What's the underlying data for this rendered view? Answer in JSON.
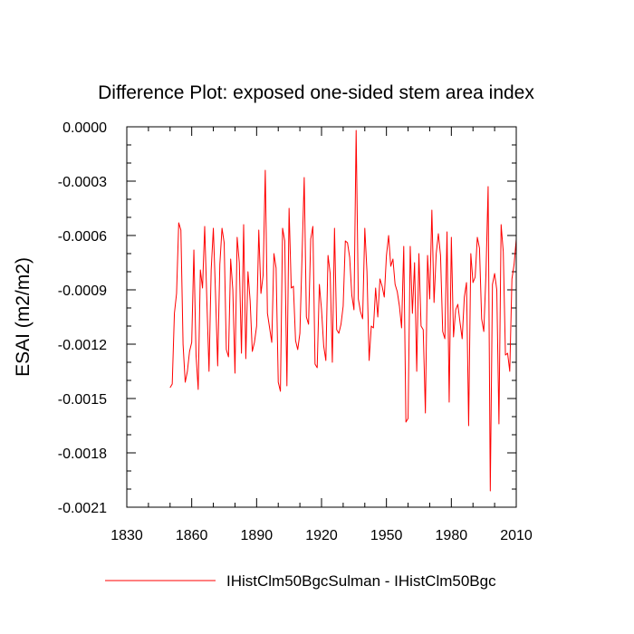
{
  "chart_data": {
    "type": "line",
    "title": "Difference Plot: exposed one-sided stem area index",
    "ylabel": "ESAI  (m2/m2)",
    "xlabel": "",
    "xlim": [
      1830,
      2010
    ],
    "ylim": [
      -0.0021,
      0.0
    ],
    "x_ticks": [
      1830,
      1860,
      1890,
      1920,
      1950,
      1980,
      2010
    ],
    "x_tick_labels": [
      "1830",
      "1860",
      "1890",
      "1920",
      "1950",
      "1980",
      "2010"
    ],
    "y_ticks": [
      0.0,
      -0.0003,
      -0.0006,
      -0.0009,
      -0.0012,
      -0.0015,
      -0.0018,
      -0.0021
    ],
    "y_tick_labels": [
      "0.0000",
      "-0.0003",
      "-0.0006",
      "-0.0009",
      "-0.0012",
      "-0.0015",
      "-0.0018",
      "-0.0021"
    ],
    "grid": false,
    "legend_position": "bottom",
    "series": [
      {
        "name": "IHistClm50BgcSulman - IHistClm50Bgc",
        "color": "#ff0000",
        "x": [
          1850,
          1851,
          1852,
          1853,
          1854,
          1855,
          1856,
          1857,
          1858,
          1859,
          1860,
          1861,
          1862,
          1863,
          1864,
          1865,
          1866,
          1867,
          1868,
          1869,
          1870,
          1871,
          1872,
          1873,
          1874,
          1875,
          1876,
          1877,
          1878,
          1879,
          1880,
          1881,
          1882,
          1883,
          1884,
          1885,
          1886,
          1887,
          1888,
          1889,
          1890,
          1891,
          1892,
          1893,
          1894,
          1895,
          1896,
          1897,
          1898,
          1899,
          1900,
          1901,
          1902,
          1903,
          1904,
          1905,
          1906,
          1907,
          1908,
          1909,
          1910,
          1911,
          1912,
          1913,
          1914,
          1915,
          1916,
          1917,
          1918,
          1919,
          1920,
          1921,
          1922,
          1923,
          1924,
          1925,
          1926,
          1927,
          1928,
          1929,
          1930,
          1931,
          1932,
          1933,
          1934,
          1935,
          1936,
          1937,
          1938,
          1939,
          1940,
          1941,
          1942,
          1943,
          1944,
          1945,
          1946,
          1947,
          1948,
          1949,
          1950,
          1951,
          1952,
          1953,
          1954,
          1955,
          1956,
          1957,
          1958,
          1959,
          1960,
          1961,
          1962,
          1963,
          1964,
          1965,
          1966,
          1967,
          1968,
          1969,
          1970,
          1971,
          1972,
          1973,
          1974,
          1975,
          1976,
          1977,
          1978,
          1979,
          1980,
          1981,
          1982,
          1983,
          1984,
          1985,
          1986,
          1987,
          1988,
          1989,
          1990,
          1991,
          1992,
          1993,
          1994,
          1995,
          1996,
          1997,
          1998,
          1999,
          2000,
          2001,
          2002,
          2003,
          2004,
          2005,
          2006,
          2007,
          2008,
          2009,
          2010
        ],
        "values": [
          -0.00144,
          -0.00142,
          -0.00103,
          -0.00092,
          -0.00053,
          -0.00057,
          -0.0012,
          -0.00141,
          -0.00135,
          -0.00124,
          -0.00119,
          -0.00068,
          -0.00126,
          -0.00145,
          -0.00079,
          -0.00089,
          -0.00055,
          -0.00096,
          -0.00135,
          -0.00079,
          -0.00056,
          -0.00092,
          -0.00132,
          -0.00076,
          -0.00056,
          -0.00064,
          -0.00123,
          -0.00127,
          -0.00073,
          -0.0009,
          -0.00136,
          -0.00061,
          -0.00075,
          -0.00125,
          -0.00054,
          -0.00128,
          -0.0008,
          -0.00096,
          -0.00124,
          -0.00119,
          -0.0011,
          -0.00057,
          -0.00092,
          -0.00082,
          -0.00024,
          -0.00103,
          -0.00111,
          -0.00119,
          -0.0007,
          -0.00078,
          -0.00141,
          -0.00146,
          -0.00056,
          -0.00063,
          -0.00143,
          -0.00045,
          -0.00089,
          -0.00088,
          -0.00118,
          -0.00123,
          -0.00114,
          -0.00071,
          -0.00028,
          -0.00105,
          -0.00109,
          -0.00062,
          -0.00055,
          -0.00131,
          -0.00133,
          -0.00087,
          -0.00101,
          -0.00121,
          -0.00129,
          -0.00071,
          -0.00081,
          -0.0013,
          -0.00056,
          -0.00112,
          -0.00114,
          -0.00109,
          -0.00099,
          -0.00063,
          -0.00064,
          -0.00072,
          -0.00093,
          -0.00101,
          -2e-05,
          -0.00095,
          -0.00102,
          -0.00106,
          -0.00056,
          -0.0008,
          -0.00129,
          -0.0011,
          -0.00111,
          -0.00089,
          -0.00105,
          -0.00084,
          -0.00088,
          -0.00094,
          -0.00071,
          -0.0006,
          -0.00077,
          -0.00073,
          -0.00087,
          -0.00091,
          -0.00099,
          -0.00111,
          -0.00066,
          -0.00163,
          -0.00161,
          -0.00066,
          -0.00103,
          -0.00075,
          -0.00135,
          -0.0007,
          -0.0011,
          -0.00112,
          -0.00158,
          -0.00071,
          -0.00095,
          -0.00046,
          -0.00097,
          -0.0007,
          -0.00059,
          -0.00071,
          -0.00113,
          -0.00117,
          -0.00058,
          -0.00152,
          -0.00061,
          -0.00116,
          -0.00101,
          -0.00098,
          -0.00108,
          -0.00117,
          -0.00094,
          -0.00086,
          -0.00165,
          -0.0007,
          -0.00086,
          -0.00083,
          -0.00061,
          -0.00067,
          -0.00106,
          -0.00113,
          -0.00081,
          -0.00033,
          -0.00201,
          -0.00087,
          -0.00081,
          -0.0009,
          -0.00164,
          -0.00054,
          -0.00069,
          -0.00126,
          -0.00125,
          -0.00135,
          -0.00084,
          -0.00076,
          -0.00062
        ]
      }
    ]
  }
}
